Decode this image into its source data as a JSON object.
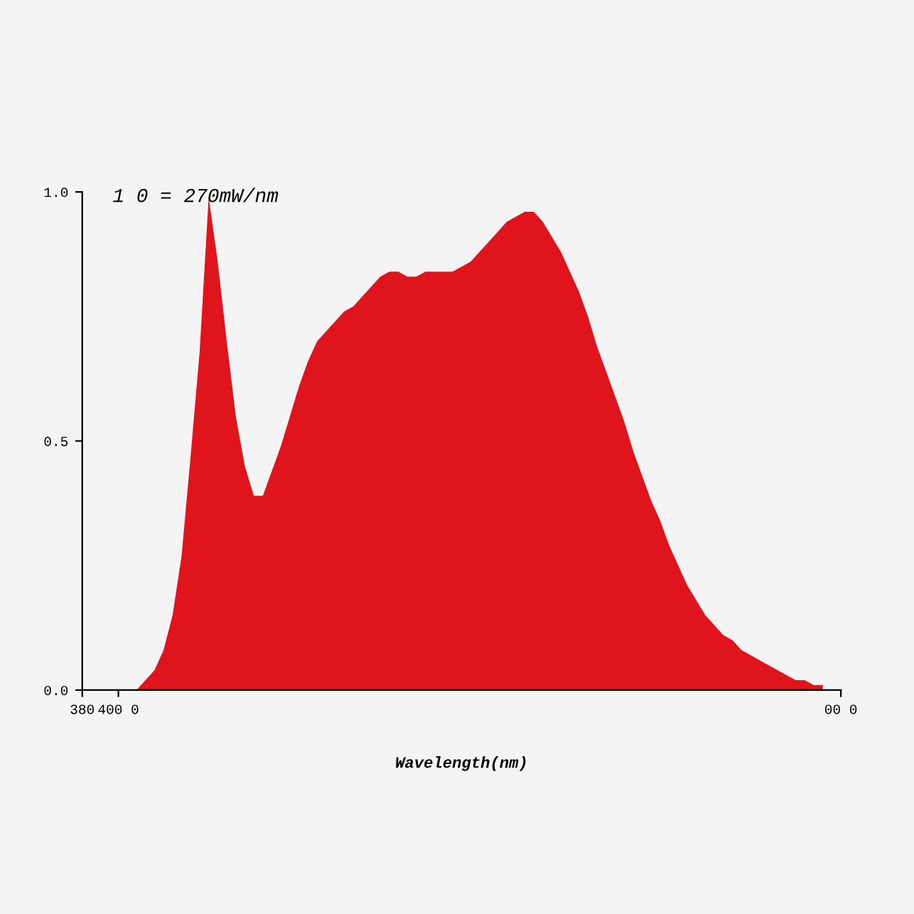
{
  "chart_data": {
    "type": "area",
    "xlabel": "Wavelength(nm)",
    "annotations": [
      "1 0 = 270mW/nm"
    ],
    "categories": [
      "380",
      null,
      null,
      null,
      "400 0",
      null,
      null,
      null,
      null,
      null,
      null,
      null,
      null,
      null,
      null,
      null,
      null,
      null,
      null,
      null,
      null,
      null,
      null,
      null,
      null,
      null,
      null,
      null,
      null,
      null,
      null,
      null,
      null,
      null,
      null,
      null,
      null,
      null,
      null,
      null,
      null,
      null,
      null,
      null,
      null,
      null,
      null,
      null,
      null,
      null,
      null,
      null,
      null,
      null,
      null,
      null,
      null,
      null,
      null,
      null,
      null,
      null,
      null,
      null,
      null,
      null,
      null,
      null,
      null,
      null,
      null,
      null,
      null,
      null,
      null,
      null,
      null,
      null,
      null,
      null,
      null,
      null,
      null,
      null,
      "00 0"
    ],
    "series": [
      {
        "color": "#e0141c",
        "values": [
          0,
          0,
          0,
          0,
          0,
          0,
          0,
          0.02,
          0.04,
          0.08,
          0.15,
          0.27,
          0.47,
          0.68,
          0.99,
          0.86,
          0.7,
          0.55,
          0.45,
          0.39,
          0.39,
          0.44,
          0.49,
          0.55,
          0.61,
          0.66,
          0.7,
          0.72,
          0.74,
          0.76,
          0.77,
          0.79,
          0.81,
          0.83,
          0.84,
          0.84,
          0.83,
          0.83,
          0.84,
          0.84,
          0.84,
          0.84,
          0.85,
          0.86,
          0.88,
          0.9,
          0.92,
          0.94,
          0.95,
          0.96,
          0.96,
          0.94,
          0.91,
          0.88,
          0.84,
          0.8,
          0.75,
          0.69,
          0.64,
          0.59,
          0.54,
          0.48,
          0.43,
          0.38,
          0.34,
          0.29,
          0.25,
          0.21,
          0.18,
          0.15,
          0.13,
          0.11,
          0.1,
          0.08,
          0.07,
          0.06,
          0.05,
          0.04,
          0.03,
          0.02,
          0.02,
          0.01,
          0.01,
          null,
          null
        ]
      }
    ],
    "ylim": [
      0,
      1.0
    ],
    "yticks": [
      {
        "value": 0,
        "label": "0.0"
      },
      0.5,
      {
        "value": 1.0,
        "label": "1.0"
      }
    ],
    "grid": false,
    "legend": false
  }
}
